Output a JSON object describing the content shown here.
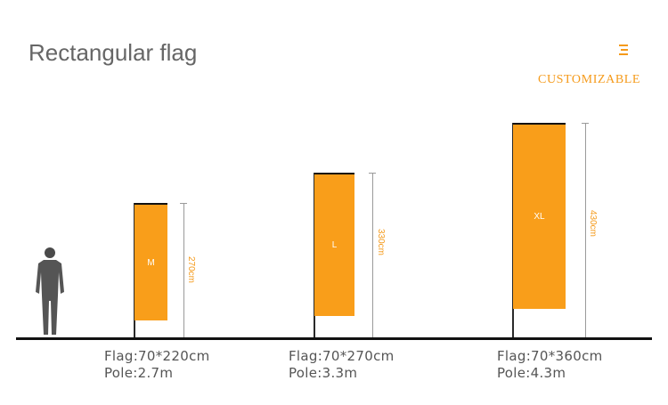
{
  "title": "Rectangular flag",
  "header": {
    "customizable_label": "CUSTOMIZABLE",
    "menu_icon": "menu-icon"
  },
  "colors": {
    "accent": "#F59A1A",
    "flag": "#F99E1A",
    "title": "#666666",
    "caption": "#555555"
  },
  "figures": {
    "person_icon": "person-silhouette-icon"
  },
  "flags": [
    {
      "size": "M",
      "height": "270cm",
      "flag": "Flag:70*220cm",
      "pole": "Pole:2.7m"
    },
    {
      "size": "L",
      "height": "330cm",
      "flag": "Flag:70*270cm",
      "pole": "Pole:3.3m"
    },
    {
      "size": "XL",
      "height": "430cm",
      "flag": "Flag:70*360cm",
      "pole": "Pole:4.3m"
    }
  ]
}
